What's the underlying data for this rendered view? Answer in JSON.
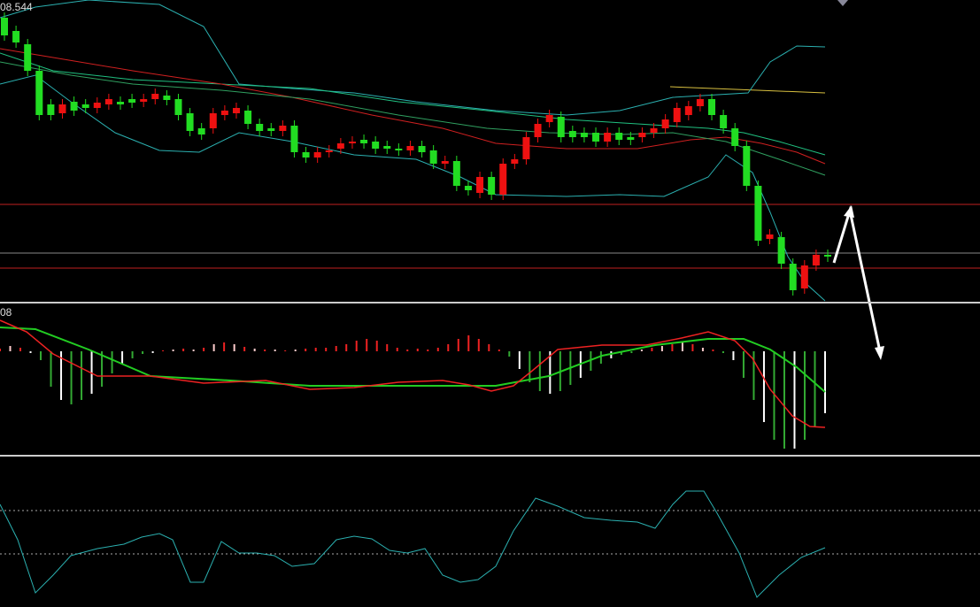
{
  "main_pane": {
    "price_label": "08.544"
  },
  "macd_pane": {
    "label": "08"
  }
}
